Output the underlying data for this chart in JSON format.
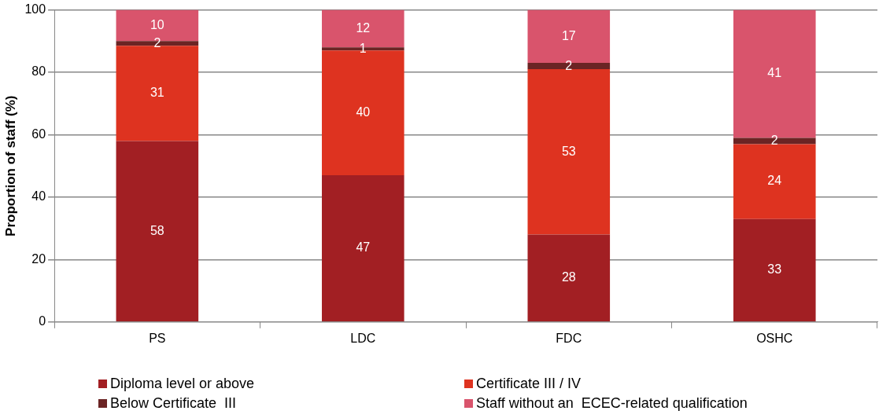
{
  "chart_data": {
    "type": "bar",
    "stacked": true,
    "ylabel": "Proportion of staff (%)",
    "categories": [
      "PS",
      "LDC",
      "FDC",
      "OSHC"
    ],
    "series": [
      {
        "name": "Diploma level or above",
        "color": "#a21f23",
        "values": [
          58,
          47,
          28,
          33
        ],
        "value_labels": [
          "58",
          "47",
          "28",
          "33"
        ]
      },
      {
        "name": "Certificate III / IV",
        "color": "#de3320",
        "values": [
          30.5,
          40,
          53,
          24
        ],
        "value_labels": [
          "31",
          "40",
          "53",
          "24"
        ]
      },
      {
        "name": "Below Certificate  III",
        "color": "#6b2424",
        "values": [
          1.5,
          1,
          2,
          2
        ],
        "value_labels": [
          "2",
          "1",
          "2",
          "2"
        ]
      },
      {
        "name": "Staff without an  ECEC-related qualification",
        "color": "#d9546c",
        "values": [
          10,
          12,
          17,
          41
        ],
        "value_labels": [
          "10",
          "12",
          "17",
          "41"
        ]
      }
    ],
    "ylim": [
      0,
      100
    ],
    "yticks": [
      0,
      20,
      40,
      60,
      80,
      100
    ],
    "grid": "y",
    "legend": "bottom"
  }
}
